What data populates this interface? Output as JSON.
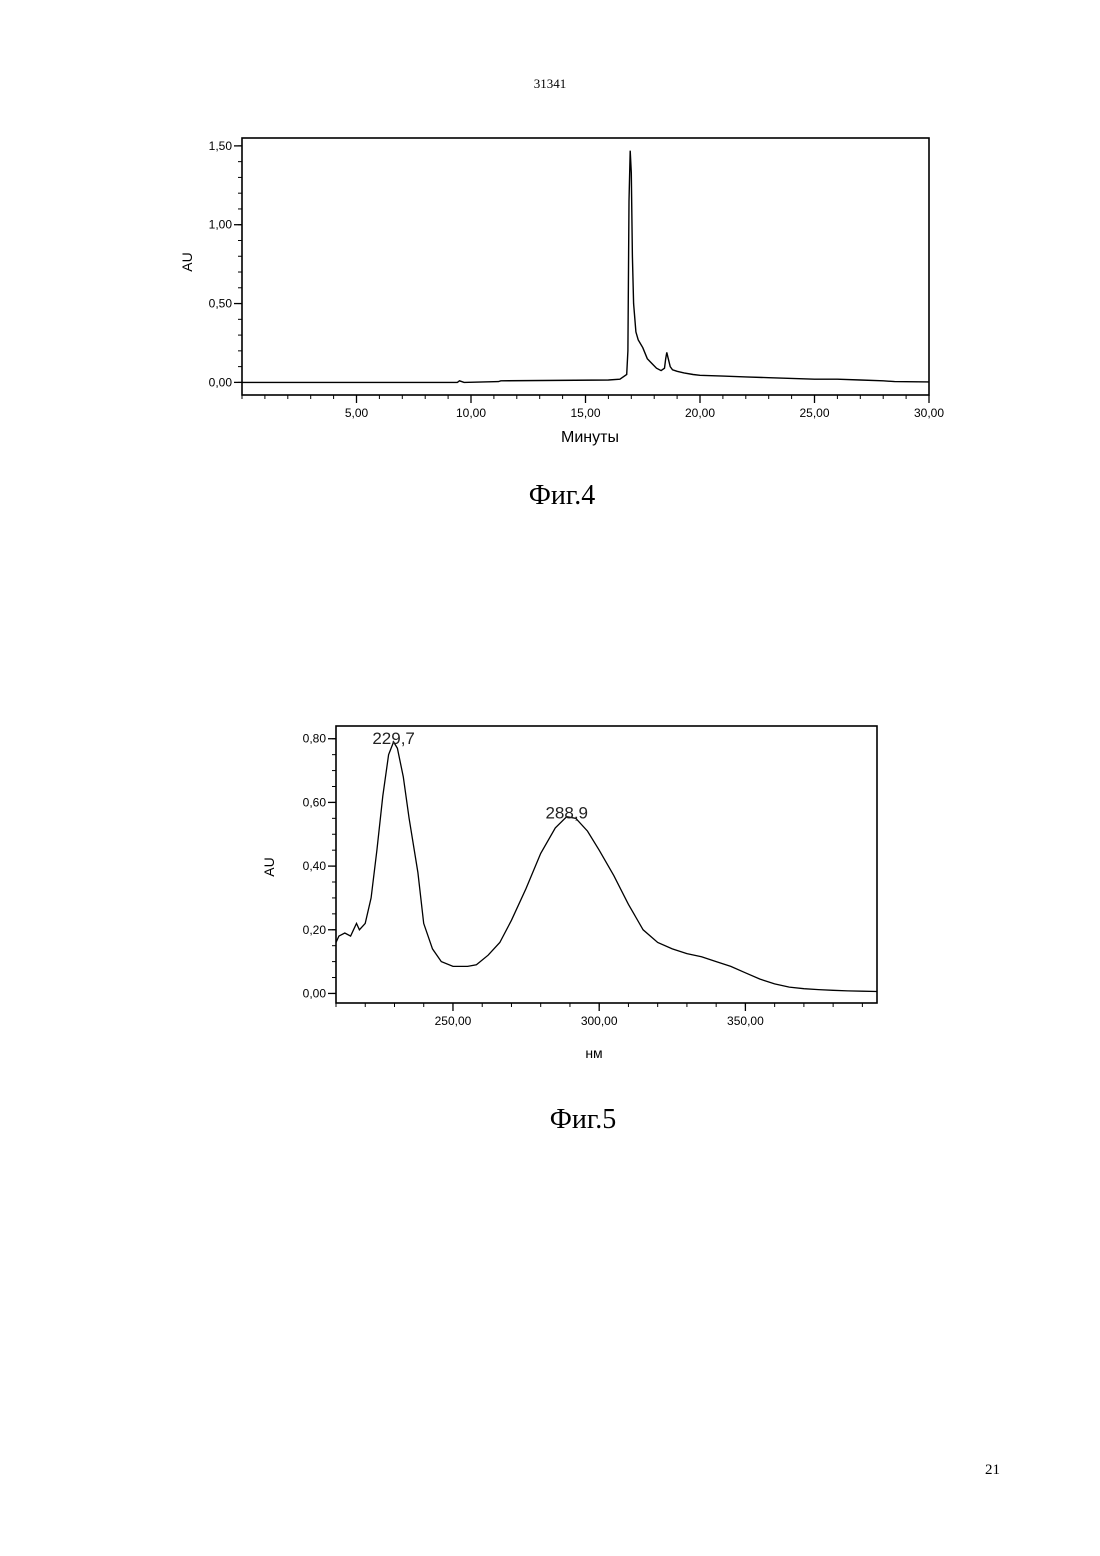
{
  "header": {
    "doc_number": "31341"
  },
  "footer": {
    "page_number": "21"
  },
  "figures": [
    {
      "caption": "Фиг.4"
    },
    {
      "caption": "Фиг.5"
    }
  ],
  "chart_data": [
    {
      "type": "line",
      "xlabel": "Минуты",
      "ylabel": "AU",
      "xlim": [
        0,
        30
      ],
      "ylim": [
        -0.08,
        1.55
      ],
      "x_ticks": [
        5,
        10,
        15,
        20,
        25,
        30
      ],
      "x_tick_labels": [
        "5,00",
        "10,00",
        "15,00",
        "20,00",
        "25,00",
        "30,00"
      ],
      "y_ticks": [
        0,
        0.5,
        1.0,
        1.5
      ],
      "y_tick_labels": [
        "0,00",
        "0,50",
        "1,00",
        "1,50"
      ],
      "grid": false,
      "series": [
        {
          "x": [
            0,
            9.4,
            9.5,
            9.7,
            11.2,
            11.3,
            16.0,
            16.5,
            16.8,
            16.85,
            16.9,
            16.95,
            17.0,
            17.05,
            17.1,
            17.2,
            17.3,
            17.5,
            17.7,
            17.9,
            18.1,
            18.3,
            18.45,
            18.5,
            18.55,
            18.6,
            18.7,
            18.8,
            19.0,
            19.3,
            19.7,
            20.0,
            21.0,
            22.0,
            23.0,
            24.0,
            25.0,
            26.0,
            27.0,
            28.0,
            28.5,
            30.0
          ],
          "y": [
            0.0,
            0.0,
            0.01,
            0.0,
            0.005,
            0.01,
            0.015,
            0.02,
            0.05,
            0.2,
            1.15,
            1.47,
            1.33,
            0.8,
            0.5,
            0.32,
            0.27,
            0.22,
            0.15,
            0.12,
            0.09,
            0.075,
            0.09,
            0.15,
            0.19,
            0.16,
            0.1,
            0.08,
            0.07,
            0.06,
            0.05,
            0.045,
            0.04,
            0.035,
            0.03,
            0.025,
            0.02,
            0.02,
            0.015,
            0.01,
            0.005,
            0.003
          ]
        }
      ]
    },
    {
      "type": "line",
      "xlabel": "нм",
      "ylabel": "AU",
      "xlim": [
        210,
        395
      ],
      "ylim": [
        -0.03,
        0.84
      ],
      "x_ticks": [
        250,
        300,
        350
      ],
      "x_tick_labels": [
        "250,00",
        "300,00",
        "350,00"
      ],
      "y_ticks": [
        0,
        0.2,
        0.4,
        0.6,
        0.8
      ],
      "y_tick_labels": [
        "0,00",
        "0,20",
        "0,40",
        "0,60",
        "0,80"
      ],
      "grid": false,
      "annotations": [
        {
          "text": "229,7",
          "x": 229.7,
          "y": 0.79
        },
        {
          "text": "288,9",
          "x": 288.9,
          "y": 0.555
        }
      ],
      "series": [
        {
          "x": [
            210,
            211,
            213,
            215,
            216,
            217,
            218,
            220,
            222,
            224,
            226,
            228,
            229.7,
            231,
            233,
            235,
            238,
            240,
            243,
            246,
            250,
            255,
            258,
            262,
            266,
            270,
            275,
            280,
            285,
            288.9,
            292,
            296,
            300,
            305,
            310,
            315,
            320,
            325,
            330,
            335,
            340,
            345,
            350,
            355,
            360,
            365,
            370,
            375,
            380,
            385,
            390,
            395
          ],
          "y": [
            0.16,
            0.18,
            0.19,
            0.18,
            0.2,
            0.22,
            0.2,
            0.22,
            0.3,
            0.45,
            0.62,
            0.75,
            0.79,
            0.77,
            0.68,
            0.55,
            0.38,
            0.22,
            0.14,
            0.1,
            0.085,
            0.085,
            0.09,
            0.12,
            0.16,
            0.23,
            0.33,
            0.44,
            0.52,
            0.555,
            0.55,
            0.51,
            0.45,
            0.37,
            0.28,
            0.2,
            0.16,
            0.14,
            0.125,
            0.115,
            0.1,
            0.085,
            0.065,
            0.045,
            0.03,
            0.02,
            0.015,
            0.012,
            0.01,
            0.008,
            0.007,
            0.006
          ]
        }
      ]
    }
  ]
}
